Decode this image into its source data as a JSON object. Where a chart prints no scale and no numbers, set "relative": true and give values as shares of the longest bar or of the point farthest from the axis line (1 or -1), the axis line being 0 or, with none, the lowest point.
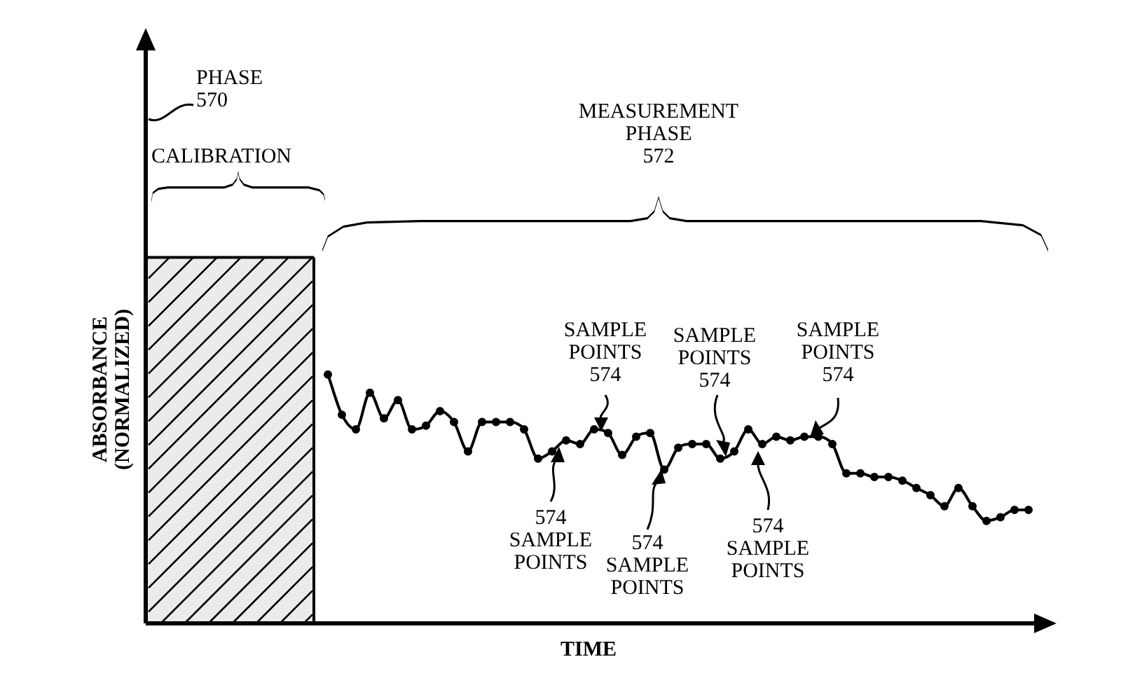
{
  "chart_data": {
    "type": "line",
    "relative": true,
    "xlabel": "TIME",
    "ylabel": "ABSORBANCE\n(NORMALIZED)",
    "tick_labels": false,
    "legend": false,
    "categories": [
      null,
      null,
      null,
      null,
      null,
      null,
      null,
      null,
      null,
      null,
      null,
      null,
      null,
      null,
      null,
      null,
      null,
      null,
      null,
      null,
      null,
      null,
      null,
      null,
      null,
      null,
      null,
      null,
      null,
      null,
      null,
      null,
      null,
      null,
      null,
      null,
      null,
      null,
      null,
      null,
      null,
      null,
      null,
      null,
      null,
      null,
      null,
      null,
      null,
      null,
      null,
      null,
      null,
      null,
      null,
      null,
      null,
      null,
      null,
      null,
      null,
      null,
      null,
      null
    ],
    "series": [
      {
        "type": "area",
        "color": "#000000",
        "values": [
          1,
          1,
          1,
          1,
          1,
          1,
          1,
          1,
          1,
          1,
          1,
          1,
          1,
          null,
          null,
          null,
          null,
          null,
          null,
          null,
          null,
          null,
          null,
          null,
          null,
          null,
          null,
          null,
          null,
          null,
          null,
          null,
          null,
          null,
          null,
          null,
          null,
          null,
          null,
          null,
          null,
          null,
          null,
          null,
          null,
          null,
          null,
          null,
          null,
          null,
          null,
          null,
          null,
          null,
          null,
          null,
          null,
          null,
          null,
          null,
          null,
          null,
          null,
          null
        ]
      },
      {
        "type": "line",
        "color": "#000000",
        "marker": "circle",
        "line_style": "solid",
        "values": [
          null,
          null,
          null,
          null,
          null,
          null,
          null,
          null,
          null,
          null,
          null,
          null,
          null,
          0.68,
          0.57,
          0.53,
          0.63,
          0.56,
          0.61,
          0.53,
          0.54,
          0.58,
          0.55,
          0.47,
          0.55,
          0.55,
          0.55,
          0.53,
          0.45,
          0.47,
          0.5,
          0.49,
          0.53,
          0.52,
          0.46,
          0.51,
          0.52,
          0.42,
          0.48,
          0.49,
          0.49,
          0.45,
          0.47,
          0.53,
          0.49,
          0.51,
          0.5,
          0.51,
          0.51,
          0.49,
          0.41,
          0.41,
          0.4,
          0.4,
          0.39,
          0.37,
          0.35,
          0.32,
          0.37,
          0.32,
          0.28,
          0.29,
          0.31,
          0.31
        ]
      }
    ],
    "annotations": [
      "PHASE\n570",
      "CALIBRATION",
      "MEASUREMENT\nPHASE\n572",
      "SAMPLE\nPOINTS\n574",
      "SAMPLE\nPOINTS\n574",
      "SAMPLE\nPOINTS\n574",
      "574\nSAMPLE\nPOINTS",
      "574\nSAMPLE\nPOINTS",
      "574\nSAMPLE\nPOINTS"
    ]
  }
}
